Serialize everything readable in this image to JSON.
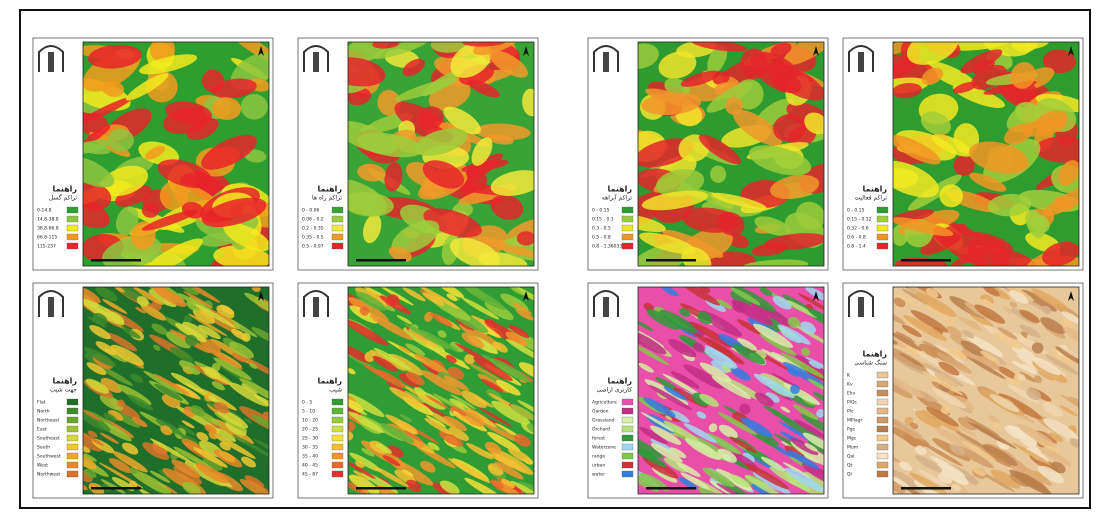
{
  "panels": [
    {
      "title": "راهنما",
      "subtitle": "تراکم گسل",
      "items": [
        {
          "label": "0-14.8",
          "color": "#2e9e2e"
        },
        {
          "label": "14.8-38.8",
          "color": "#8cc63f"
        },
        {
          "label": "38.8-66.8",
          "color": "#f2ea1d"
        },
        {
          "label": "66.8-115",
          "color": "#f39a1e"
        },
        {
          "label": "115-237",
          "color": "#e8232a"
        }
      ]
    },
    {
      "title": "راهنما",
      "subtitle": "تراکم راه ها",
      "items": [
        {
          "label": "0 - 0.06",
          "color": "#3aa335"
        },
        {
          "label": "0.06 - 0.2",
          "color": "#9ccc3c"
        },
        {
          "label": "0.2 - 0.35",
          "color": "#f2ea3a"
        },
        {
          "label": "0.35 - 0.5",
          "color": "#f29a2a"
        },
        {
          "label": "0.5 - 0.97",
          "color": "#e6242b"
        }
      ]
    },
    {
      "title": "راهنما",
      "subtitle": "تراکم آبراهه",
      "items": [
        {
          "label": "0 - 0.15",
          "color": "#2e9b30"
        },
        {
          "label": "0.15 - 0.3",
          "color": "#9acb3a"
        },
        {
          "label": "0.3 - 0.5",
          "color": "#f1e52a"
        },
        {
          "label": "0.5 - 0.8",
          "color": "#f0962a"
        },
        {
          "label": "0.8 - 1.36033",
          "color": "#e3252b"
        }
      ]
    },
    {
      "title": "راهنما",
      "subtitle": "تراکم فعالیت",
      "items": [
        {
          "label": "0 - 0.15",
          "color": "#2f9c30"
        },
        {
          "label": "0.15 - 0.32",
          "color": "#a1cf3a"
        },
        {
          "label": "0.32 - 0.6",
          "color": "#f2ea22"
        },
        {
          "label": "0.6 - 0.8",
          "color": "#f29524"
        },
        {
          "label": "0.8 - 1.4",
          "color": "#e4262a"
        }
      ]
    },
    {
      "title": "راهنما",
      "subtitle": "جهت شیب",
      "items": [
        {
          "label": "Flat",
          "color": "#1f6e2a"
        },
        {
          "label": "North",
          "color": "#3d8b2b"
        },
        {
          "label": "Northeast",
          "color": "#6aa62e"
        },
        {
          "label": "East",
          "color": "#9cc234"
        },
        {
          "label": "Southeast",
          "color": "#d6d83a"
        },
        {
          "label": "South",
          "color": "#f0c830"
        },
        {
          "label": "Southwest",
          "color": "#f0a82a"
        },
        {
          "label": "West",
          "color": "#e88a28"
        },
        {
          "label": "Northwest",
          "color": "#d9742a"
        }
      ]
    },
    {
      "title": "راهنما",
      "subtitle": "شیب",
      "items": [
        {
          "label": "0 - 5",
          "color": "#2f9d34"
        },
        {
          "label": "5 - 10",
          "color": "#62b33a"
        },
        {
          "label": "10 - 20",
          "color": "#9acb3c"
        },
        {
          "label": "20 - 25",
          "color": "#cfe03f"
        },
        {
          "label": "25 - 30",
          "color": "#f4e23a"
        },
        {
          "label": "30 - 35",
          "color": "#f4bf33"
        },
        {
          "label": "35 - 40",
          "color": "#f0962d"
        },
        {
          "label": "40 - 45",
          "color": "#ea6a2c"
        },
        {
          "label": "45 - 87",
          "color": "#e3302c"
        }
      ]
    },
    {
      "title": "راهنما",
      "subtitle": "کاربری اراضی",
      "items": [
        {
          "label": "Agriculture",
          "color": "#e94fa8"
        },
        {
          "label": "Garden",
          "color": "#c22d86"
        },
        {
          "label": "Grassland",
          "color": "#d8f0a8"
        },
        {
          "label": "Orchard",
          "color": "#b7e27a"
        },
        {
          "label": "forest",
          "color": "#2f9a3a"
        },
        {
          "label": "Waterzone",
          "color": "#9fd8f0"
        },
        {
          "label": "range",
          "color": "#82c84a"
        },
        {
          "label": "urban",
          "color": "#c8323a"
        },
        {
          "label": "water",
          "color": "#2f7ee0"
        }
      ]
    },
    {
      "title": "راهنما",
      "subtitle": "سنگ شناسی",
      "items": [
        {
          "label": "K",
          "color": "#e8c79a"
        },
        {
          "label": "Kv",
          "color": "#d9a873"
        },
        {
          "label": "Ekv",
          "color": "#c98d55"
        },
        {
          "label": "PlQc",
          "color": "#f0d6b0"
        },
        {
          "label": "Plc",
          "color": "#e3b886"
        },
        {
          "label": "MPlagr",
          "color": "#cf9b66"
        },
        {
          "label": "Pgc",
          "color": "#b97f4c"
        },
        {
          "label": "Mgc",
          "color": "#f2c98c"
        },
        {
          "label": "Mum",
          "color": "#d4b08a"
        },
        {
          "label": "Qal",
          "color": "#f5e2c4"
        },
        {
          "label": "Qt",
          "color": "#e0a860"
        },
        {
          "label": "Ql",
          "color": "#c27840"
        }
      ]
    }
  ]
}
